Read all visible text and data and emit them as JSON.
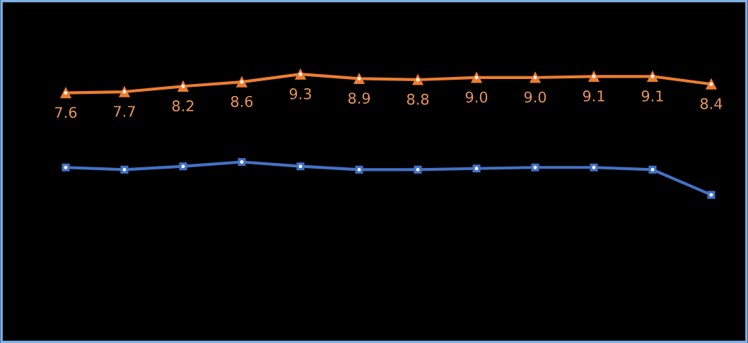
{
  "chart_data": {
    "type": "line",
    "categories": [
      null,
      null,
      null,
      null,
      null,
      null,
      null,
      null,
      null,
      null,
      null,
      null
    ],
    "series": [
      {
        "color": "#ed7d31",
        "marker": "triangle",
        "values": [
          7.6,
          7.7,
          8.2,
          8.6,
          9.3,
          8.9,
          8.8,
          9.0,
          9.0,
          9.1,
          9.1,
          8.4
        ],
        "value_labels": [
          "7.6",
          "7.7",
          "8.2",
          "8.6",
          "9.3",
          "8.9",
          "8.8",
          "9.0",
          "9.0",
          "9.1",
          "9.1",
          "8.4"
        ]
      },
      {
        "color": "#4472c4",
        "marker": "square",
        "values": [
          0.8,
          0.6,
          0.9,
          1.3,
          0.9,
          0.6,
          0.6,
          0.7,
          0.8,
          0.8,
          0.6,
          -1.7
        ]
      }
    ],
    "grid": false,
    "line_style": "solid"
  }
}
